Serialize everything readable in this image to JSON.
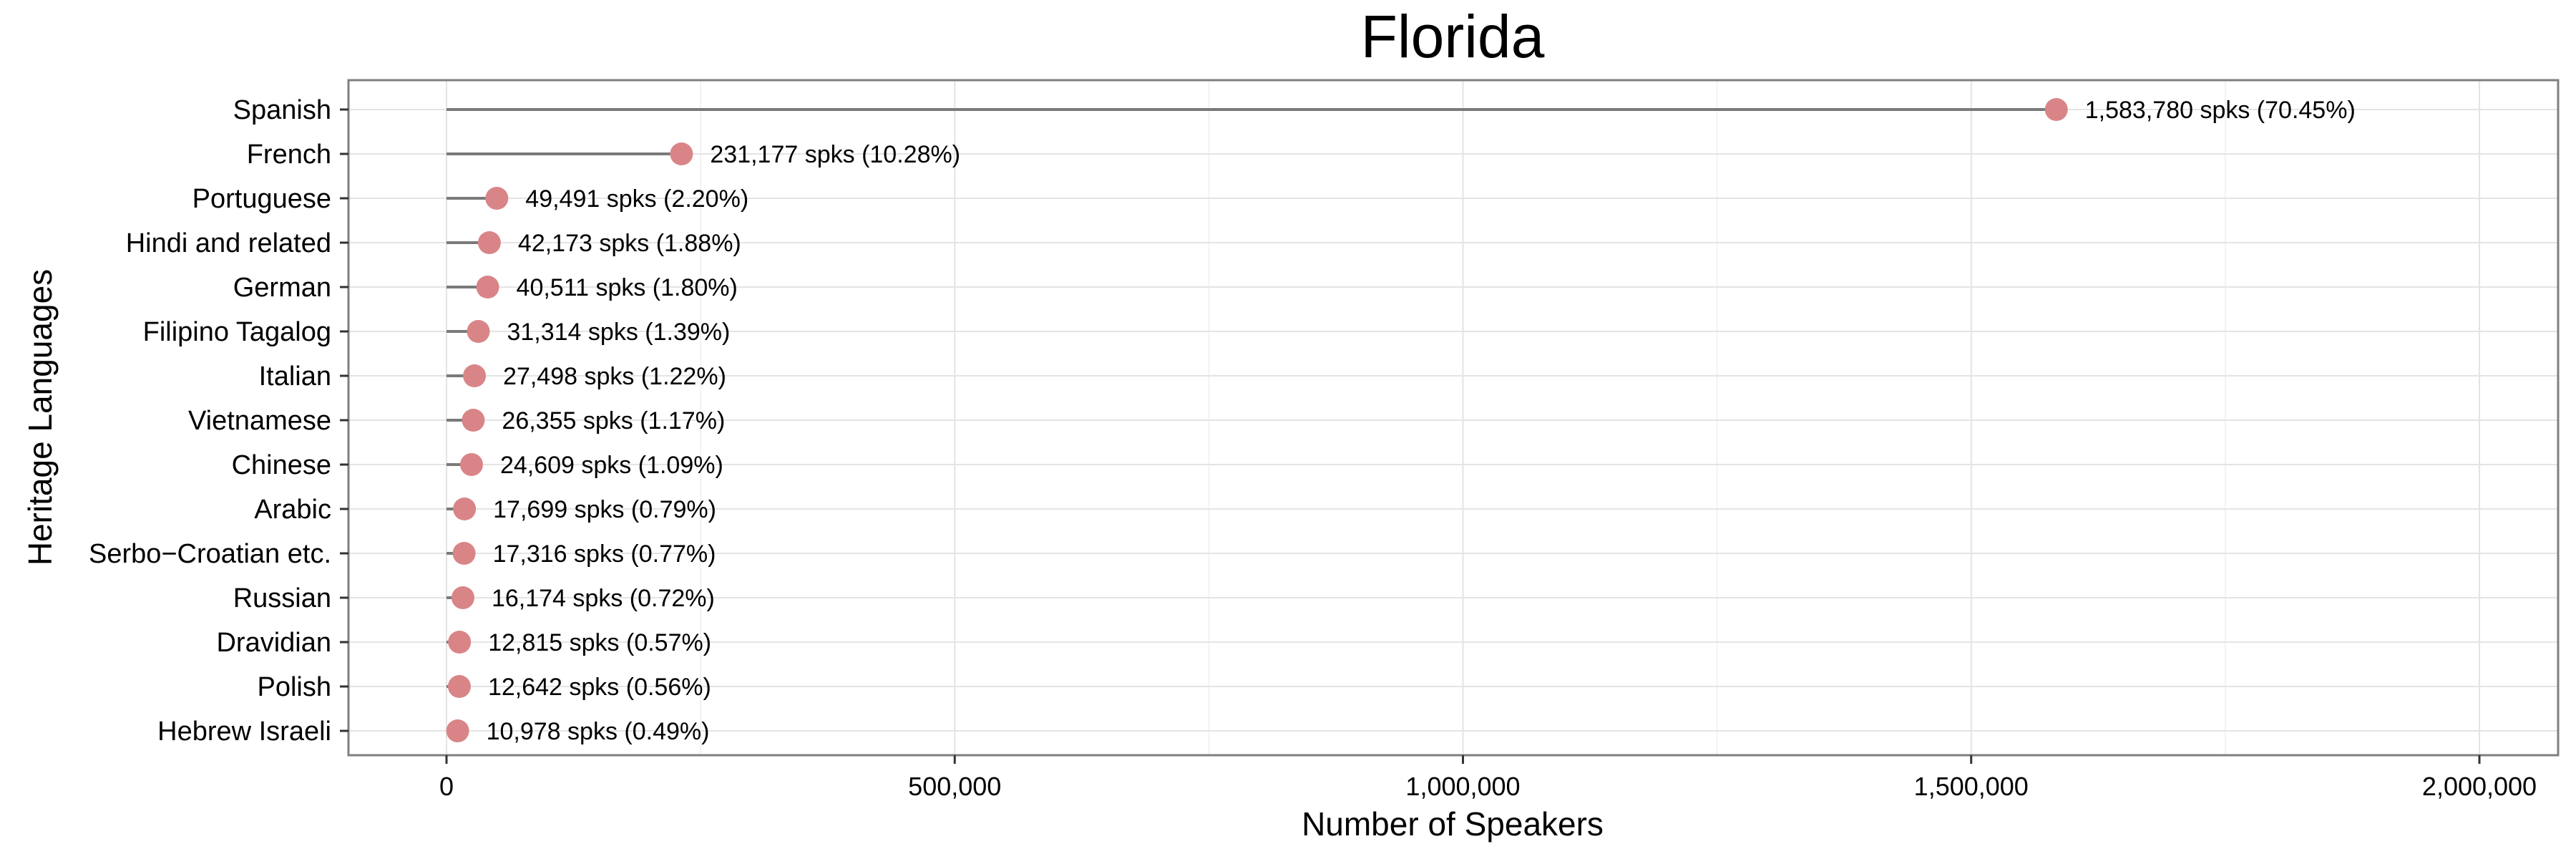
{
  "chart_data": {
    "type": "lollipop",
    "title": "Florida",
    "xlabel": "Number of Speakers",
    "ylabel": "Heritage Languages",
    "xlim": [
      -135000,
      2060000
    ],
    "x_ticks": [
      0,
      500000,
      1000000,
      1500000,
      2000000
    ],
    "x_tick_labels": [
      "0",
      "500,000",
      "1,000,000",
      "1,500,000",
      "2,000,000"
    ],
    "grid": true,
    "point_color": "#D98587",
    "segment_color": "#7a7a7a",
    "categories": [
      "Spanish",
      "French",
      "Portuguese",
      "Hindi and related",
      "German",
      "Filipino Tagalog",
      "Italian",
      "Vietnamese",
      "Chinese",
      "Arabic",
      "Serbo−Croatian etc.",
      "Russian",
      "Dravidian",
      "Polish",
      "Hebrew Israeli"
    ],
    "values": [
      1583780,
      231177,
      49491,
      42173,
      40511,
      31314,
      27498,
      26355,
      24609,
      17699,
      17316,
      16174,
      12815,
      12642,
      10978
    ],
    "labels": [
      "1,583,780 spks (70.45%)",
      "231,177 spks (10.28%)",
      "49,491 spks (2.20%)",
      "42,173 spks (1.88%)",
      "40,511 spks (1.80%)",
      "31,314 spks (1.39%)",
      "27,498 spks (1.22%)",
      "26,355 spks (1.17%)",
      "24,609 spks (1.09%)",
      "17,699 spks (0.79%)",
      "17,316 spks (0.77%)",
      "16,174 spks (0.72%)",
      "12,815 spks (0.57%)",
      "12,642 spks (0.56%)",
      "10,978 spks (0.49%)"
    ]
  }
}
